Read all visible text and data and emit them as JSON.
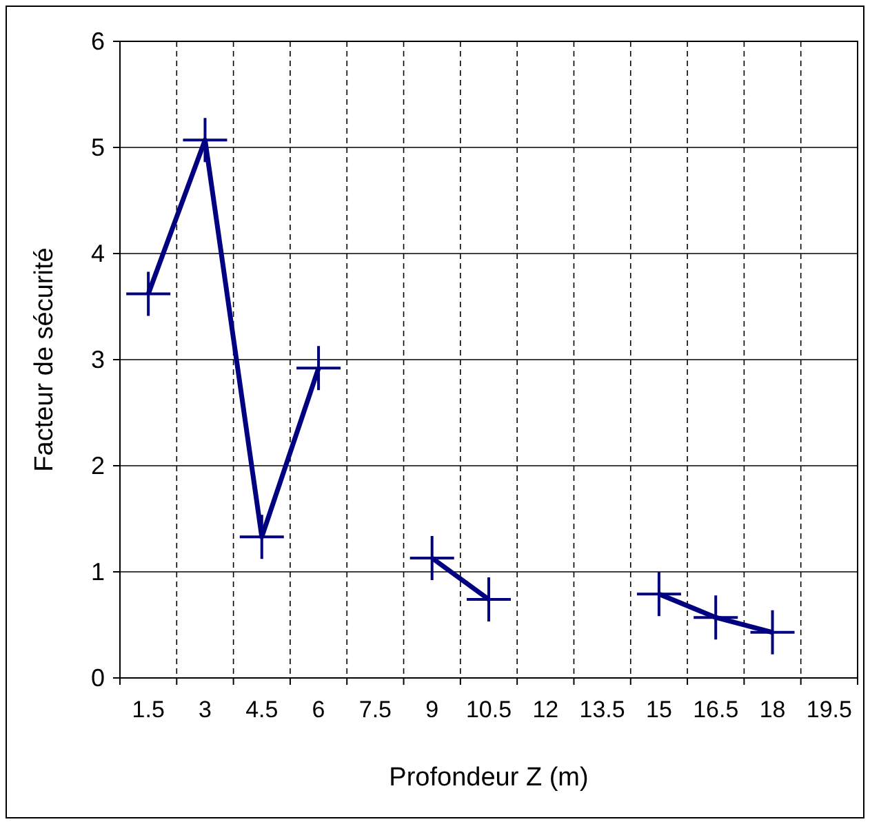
{
  "chart_data": {
    "type": "line",
    "xlabel": "Profondeur Z (m)",
    "ylabel": "Facteur de sécurité",
    "categories": [
      "1.5",
      "3",
      "4.5",
      "6",
      "7.5",
      "9",
      "10.5",
      "12",
      "13.5",
      "15",
      "16.5",
      "18",
      "19.5"
    ],
    "series": [
      {
        "color": "#000080",
        "values": [
          3.62,
          5.07,
          1.33,
          2.92,
          null,
          1.13,
          0.74,
          null,
          null,
          0.79,
          0.57,
          0.43,
          null
        ]
      }
    ],
    "ylim": [
      0,
      6
    ],
    "yticks": [
      0,
      1,
      2,
      3,
      4,
      5,
      6
    ],
    "grid": true,
    "marker": "cross",
    "line_style": "solid"
  }
}
